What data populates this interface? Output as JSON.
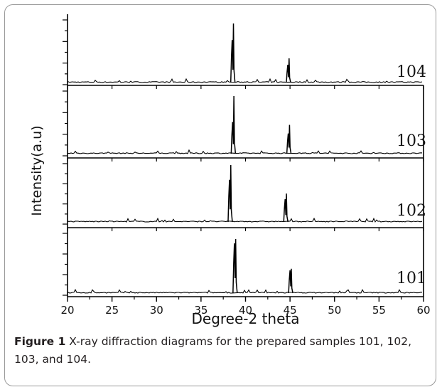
{
  "chart_data": {
    "type": "line",
    "layout": "stacked-panels",
    "xlabel": "Degree-2 theta",
    "ylabel": "Intensity(a.u)",
    "xlim": [
      20,
      60
    ],
    "x_ticks": [
      20,
      25,
      30,
      35,
      40,
      45,
      50,
      55,
      60
    ],
    "grid": false,
    "legend": "none",
    "line_color": "#000000",
    "panels": [
      {
        "label": "104",
        "peaks": [
          {
            "x": 38.5,
            "intensity": 1.0,
            "secondary": 0.72
          },
          {
            "x": 44.75,
            "intensity": 0.41,
            "secondary": 0.3
          }
        ]
      },
      {
        "label": "103",
        "peaks": [
          {
            "x": 38.55,
            "intensity": 1.0,
            "secondary": 0.55
          },
          {
            "x": 44.8,
            "intensity": 0.5,
            "secondary": 0.35
          }
        ]
      },
      {
        "label": "102",
        "peaks": [
          {
            "x": 38.2,
            "intensity": 1.0,
            "secondary": 0.74
          },
          {
            "x": 44.45,
            "intensity": 0.5,
            "secondary": 0.4
          }
        ]
      },
      {
        "label": "101",
        "peaks": [
          {
            "x": 38.75,
            "intensity": 1.0,
            "secondary": 0.92
          },
          {
            "x": 45.0,
            "intensity": 0.45,
            "secondary": 0.42
          }
        ]
      }
    ]
  },
  "caption": {
    "label": "Figure 1",
    "text": " X-ray diffraction diagrams for the prepared samples 101, 102, 103, and 104."
  }
}
